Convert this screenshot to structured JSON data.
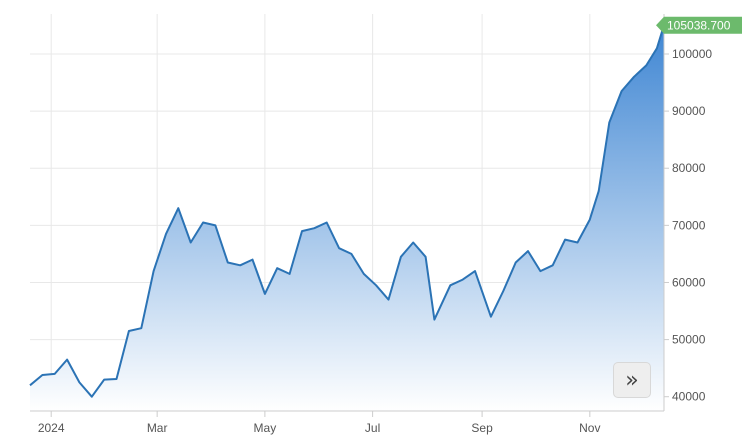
{
  "chart_data": {
    "type": "area",
    "series": [
      {
        "x": [
          "2023-12-20",
          "2023-12-27",
          "2024-01-03",
          "2024-01-10",
          "2024-01-17",
          "2024-01-24",
          "2024-01-31",
          "2024-02-07",
          "2024-02-14",
          "2024-02-21",
          "2024-02-28",
          "2024-03-06",
          "2024-03-13",
          "2024-03-20",
          "2024-03-27",
          "2024-04-03",
          "2024-04-10",
          "2024-04-17",
          "2024-04-24",
          "2024-05-01",
          "2024-05-08",
          "2024-05-15",
          "2024-05-22",
          "2024-05-29",
          "2024-06-05",
          "2024-06-12",
          "2024-06-19",
          "2024-06-26",
          "2024-07-03",
          "2024-07-10",
          "2024-07-17",
          "2024-07-24",
          "2024-07-31",
          "2024-08-05",
          "2024-08-14",
          "2024-08-21",
          "2024-08-28",
          "2024-09-06",
          "2024-09-13",
          "2024-09-20",
          "2024-09-27",
          "2024-10-04",
          "2024-10-11",
          "2024-10-18",
          "2024-10-25",
          "2024-11-01",
          "2024-11-06",
          "2024-11-12",
          "2024-11-19",
          "2024-11-26",
          "2024-12-03",
          "2024-12-09",
          "2024-12-13"
        ],
        "values": [
          42000,
          43800,
          44000,
          46500,
          42500,
          40000,
          43000,
          43100,
          51500,
          52000,
          62000,
          68500,
          73000,
          67000,
          70500,
          70000,
          63500,
          63000,
          64000,
          58000,
          62500,
          61500,
          69000,
          69500,
          70500,
          66000,
          65000,
          61500,
          59500,
          57000,
          64500,
          67000,
          64500,
          53500,
          59500,
          60500,
          62000,
          54000,
          58500,
          63500,
          65500,
          62000,
          63000,
          67500,
          67000,
          71000,
          76000,
          88000,
          93500,
          96000,
          98000,
          101000,
          105038.7
        ]
      }
    ],
    "ylim": [
      37500,
      107000
    ],
    "y_ticks": [
      "40000",
      "50000",
      "60000",
      "70000",
      "80000",
      "90000",
      "100000"
    ],
    "x_ticks": [
      {
        "date": "2024-01-01",
        "label": "2024"
      },
      {
        "date": "2024-03-01",
        "label": "Mar"
      },
      {
        "date": "2024-05-01",
        "label": "May"
      },
      {
        "date": "2024-07-01",
        "label": "Jul"
      },
      {
        "date": "2024-09-01",
        "label": "Sep"
      },
      {
        "date": "2024-11-01",
        "label": "Nov"
      }
    ],
    "last_value_label": "105038.700",
    "grid": true,
    "colors": {
      "line": "#2b73b5",
      "fill_top": "#3f86d3",
      "fill_bottom": "#ffffff",
      "badge": "#6cba6c",
      "grid": "#e8e8e8",
      "axis": "#cccccc"
    }
  },
  "controls": {
    "scroll_icon": "chevron-double-right-icon",
    "scroll_glyph": "»"
  }
}
